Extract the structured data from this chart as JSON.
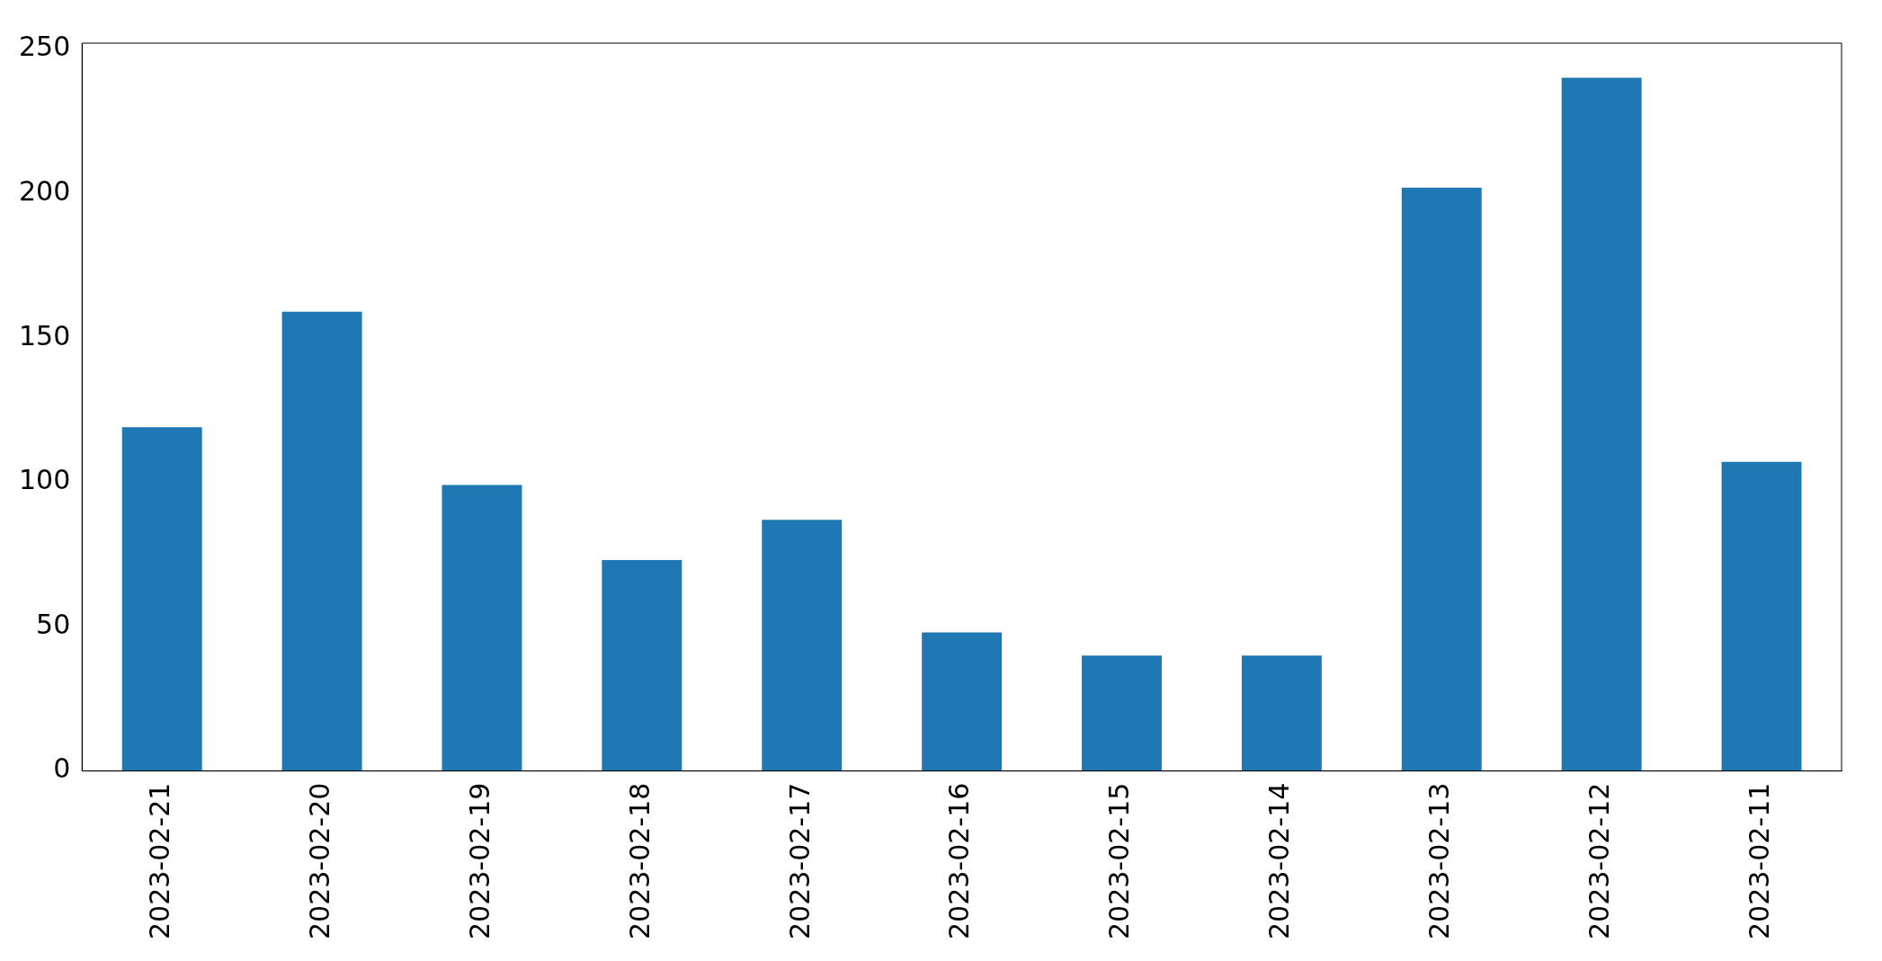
{
  "chart_data": {
    "type": "bar",
    "categories": [
      "2023-02-21",
      "2023-02-20",
      "2023-02-19",
      "2023-02-18",
      "2023-02-17",
      "2023-02-16",
      "2023-02-15",
      "2023-02-14",
      "2023-02-13",
      "2023-02-12",
      "2023-02-11"
    ],
    "values": [
      119,
      159,
      99,
      73,
      87,
      48,
      40,
      40,
      202,
      240,
      107
    ],
    "color": "#1f77b4",
    "ylim": [
      0,
      252
    ],
    "yticks": [
      0,
      50,
      100,
      150,
      200,
      250
    ],
    "grid": false,
    "legend": false
  }
}
